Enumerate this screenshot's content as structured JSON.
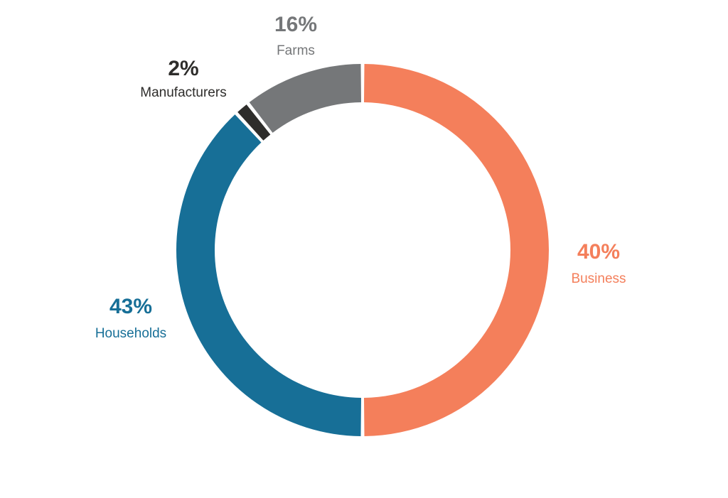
{
  "chart_data": {
    "type": "pie",
    "categories": [
      "Business",
      "Households",
      "Manufacturers",
      "Farms"
    ],
    "values": [
      40,
      43,
      2,
      16
    ],
    "value_labels": [
      "40%",
      "43%",
      "2%",
      "16%"
    ],
    "colors": [
      "#f47f5b",
      "#176f97",
      "#2e2d2b",
      "#757779"
    ],
    "label_colors": [
      "#f47f5b",
      "#176f97",
      "#2e2d2b",
      "#757779"
    ],
    "title": "",
    "legend": "none"
  }
}
